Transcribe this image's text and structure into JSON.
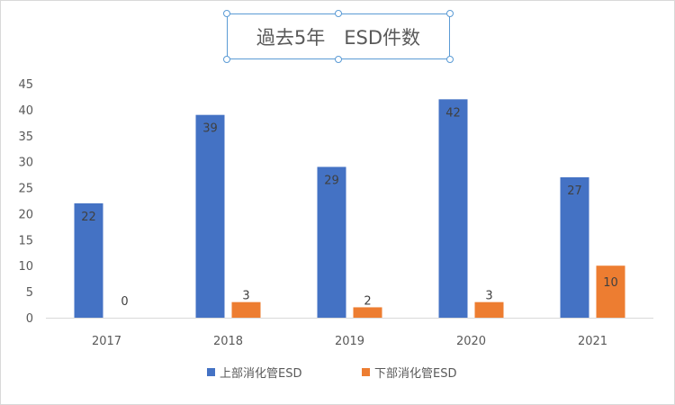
{
  "chart_data": {
    "type": "bar",
    "title": "過去5年　ESD件数",
    "categories": [
      "2017",
      "2018",
      "2019",
      "2020",
      "2021"
    ],
    "series": [
      {
        "name": "上部消化管ESD",
        "values": [
          22,
          39,
          29,
          42,
          27
        ],
        "color": "#4472c4"
      },
      {
        "name": "下部消化管ESD",
        "values": [
          0,
          3,
          2,
          3,
          10
        ],
        "color": "#ed7d31"
      }
    ],
    "yticks": [
      "0",
      "5",
      "10",
      "15",
      "20",
      "25",
      "30",
      "35",
      "40",
      "45"
    ],
    "ylim": [
      0,
      45
    ],
    "grid": false,
    "legend": "bottom",
    "data_labels": true
  }
}
